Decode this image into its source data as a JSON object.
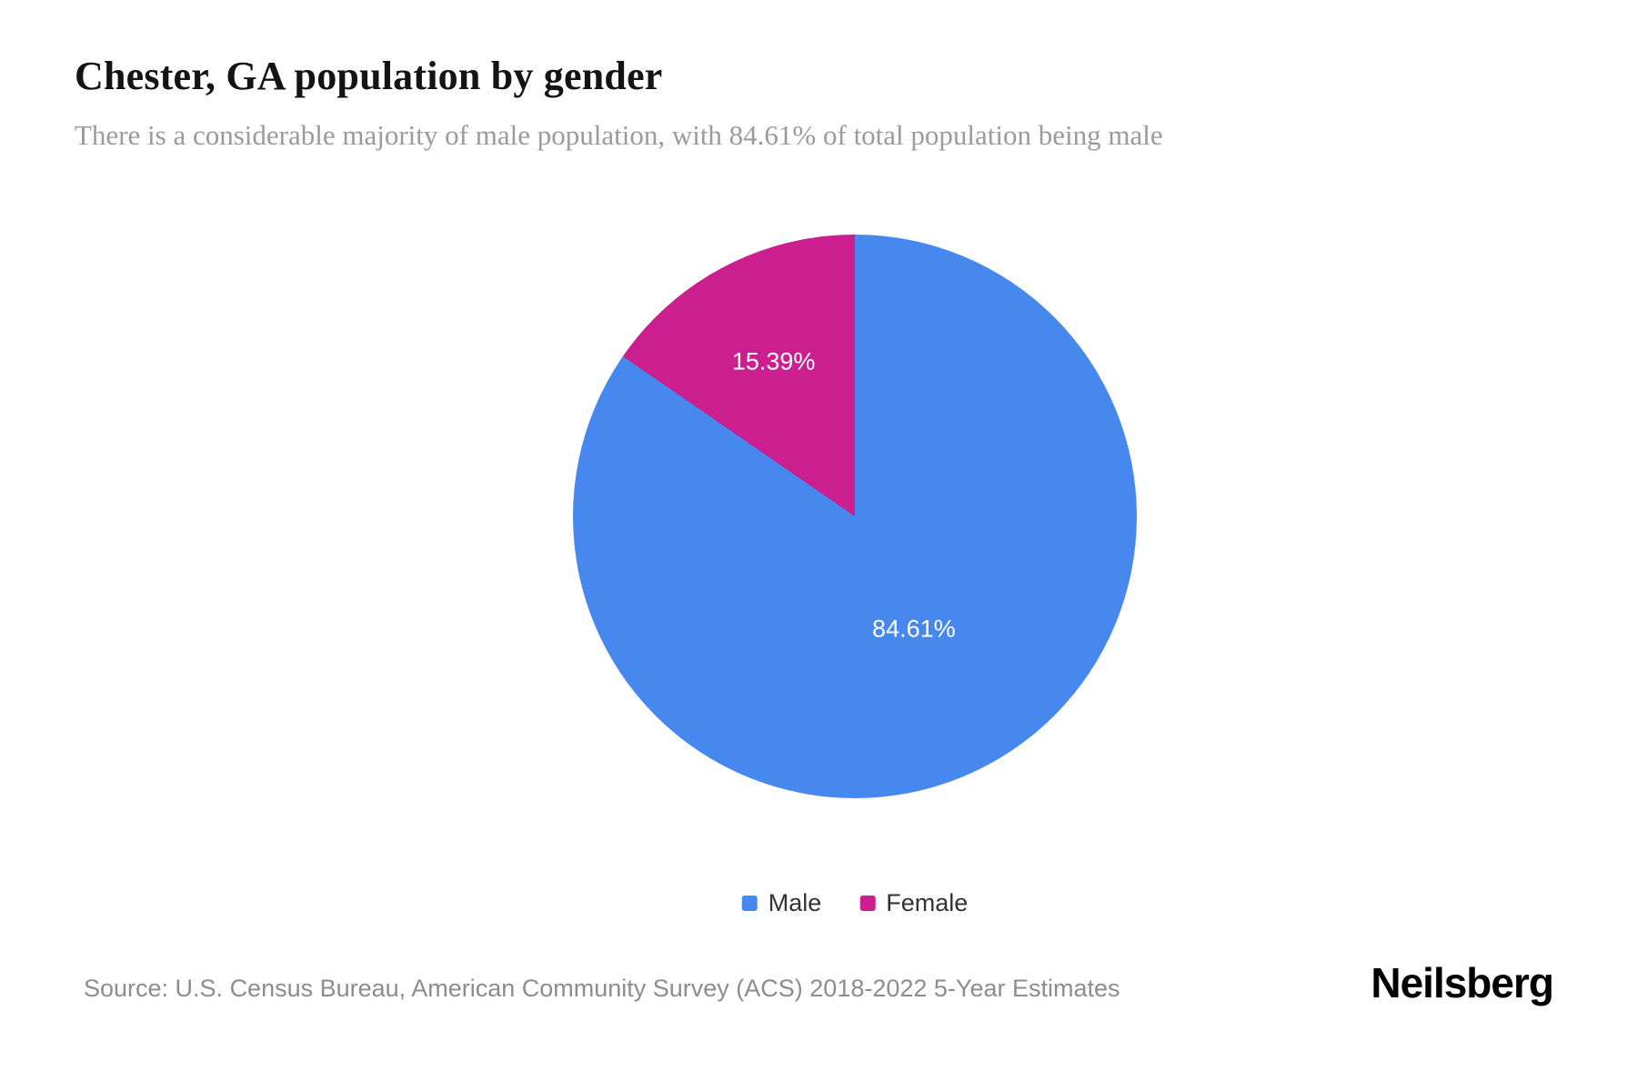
{
  "header": {
    "title": "Chester, GA population by gender",
    "subtitle": "There is a considerable majority of male population, with 84.61% of total population being male"
  },
  "chart_data": {
    "type": "pie",
    "title": "Chester, GA population by gender",
    "slices": [
      {
        "label": "Male",
        "value": 84.61,
        "display": "84.61%",
        "color": "#4788ef"
      },
      {
        "label": "Female",
        "value": 15.39,
        "display": "15.39%",
        "color": "#cc1f8f"
      }
    ],
    "start_angle_deg": 0,
    "direction": "clockwise",
    "legend_position": "bottom",
    "labels_inside": true
  },
  "footer": {
    "source": "Source: U.S. Census Bureau, American Community Survey (ACS) 2018-2022 5-Year Estimates",
    "brand": "Neilsberg"
  }
}
